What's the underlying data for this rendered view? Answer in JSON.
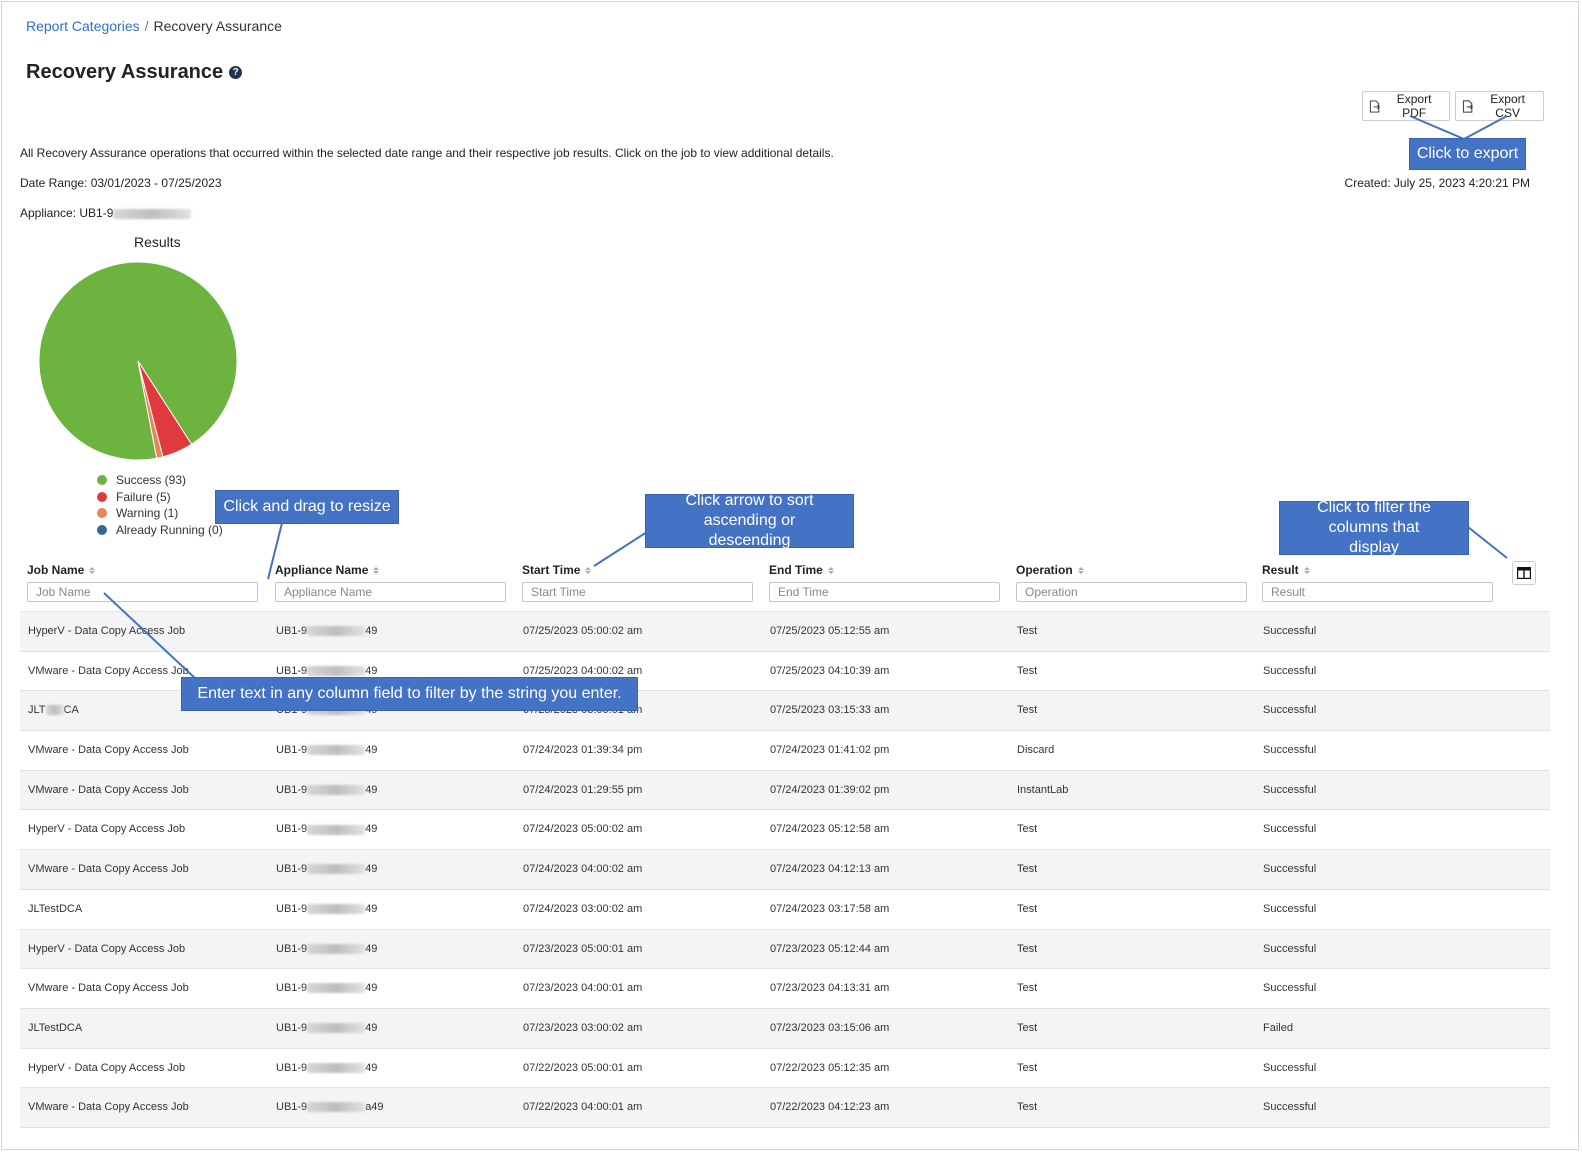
{
  "breadcrumb": {
    "root": "Report Categories",
    "separator": "/",
    "current": "Recovery Assurance"
  },
  "page": {
    "title": "Recovery Assurance",
    "help_glyph": "?",
    "description": "All Recovery Assurance operations that occurred within the selected date range and their respective job results. Click on the job to view additional details.",
    "date_range": "Date Range: 03/01/2023 - 07/25/2023",
    "created": "Created: July 25, 2023 4:20:21 PM",
    "appliance_prefix": "Appliance: UB1-9"
  },
  "toolbar": {
    "export_pdf": "Export PDF",
    "export_csv": "Export CSV"
  },
  "chart_data": {
    "type": "pie",
    "title": "Results",
    "slices": [
      {
        "label": "Success (93)",
        "value": 93,
        "color": "#6db33f"
      },
      {
        "label": "Failure (5)",
        "value": 5,
        "color": "#e03a3e"
      },
      {
        "label": "Warning (1)",
        "value": 1,
        "color": "#e8855a"
      },
      {
        "label": "Already Running (0)",
        "value": 0,
        "color": "#35678f"
      }
    ],
    "legend": "bottom"
  },
  "callouts": {
    "export": "Click to export",
    "resize": "Click and drag to resize",
    "sort": "Click arrow to sort ascending or descending",
    "columns": "Click to filter the columns that display",
    "filter": "Enter text in any column field to filter by the string you enter."
  },
  "table": {
    "columns": [
      {
        "label": "Job Name",
        "placeholder": "Job Name"
      },
      {
        "label": "Appliance Name",
        "placeholder": "Appliance Name"
      },
      {
        "label": "Start Time",
        "placeholder": "Start Time"
      },
      {
        "label": "End Time",
        "placeholder": "End Time"
      },
      {
        "label": "Operation",
        "placeholder": "Operation"
      },
      {
        "label": "Result",
        "placeholder": "Result"
      }
    ],
    "rows": [
      {
        "job": "HyperV - Data Copy Access Job",
        "appliance_prefix": "UB1-9",
        "appliance_suffix": "49",
        "start": "07/25/2023 05:00:02 am",
        "end": "07/25/2023 05:12:55 am",
        "operation": "Test",
        "result": "Successful"
      },
      {
        "job": "VMware - Data Copy Access Job",
        "appliance_prefix": "UB1-9",
        "appliance_suffix": "49",
        "start": "07/25/2023 04:00:02 am",
        "end": "07/25/2023 04:10:39 am",
        "operation": "Test",
        "result": "Successful"
      },
      {
        "job": "JLT",
        "job_suffix": "CA",
        "appliance_prefix": "UB1-9",
        "appliance_suffix": "49",
        "start": "07/25/2023 03:00:01 am",
        "end": "07/25/2023 03:15:33 am",
        "operation": "Test",
        "result": "Successful"
      },
      {
        "job": "VMware - Data Copy Access Job",
        "appliance_prefix": "UB1-9",
        "appliance_suffix": "49",
        "start": "07/24/2023 01:39:34 pm",
        "end": "07/24/2023 01:41:02 pm",
        "operation": "Discard",
        "result": "Successful"
      },
      {
        "job": "VMware - Data Copy Access Job",
        "appliance_prefix": "UB1-9",
        "appliance_suffix": "49",
        "start": "07/24/2023 01:29:55 pm",
        "end": "07/24/2023 01:39:02 pm",
        "operation": "InstantLab",
        "result": "Successful"
      },
      {
        "job": "HyperV - Data Copy Access Job",
        "appliance_prefix": "UB1-9",
        "appliance_suffix": "49",
        "start": "07/24/2023 05:00:02 am",
        "end": "07/24/2023 05:12:58 am",
        "operation": "Test",
        "result": "Successful"
      },
      {
        "job": "VMware - Data Copy Access Job",
        "appliance_prefix": "UB1-9",
        "appliance_suffix": "49",
        "start": "07/24/2023 04:00:02 am",
        "end": "07/24/2023 04:12:13 am",
        "operation": "Test",
        "result": "Successful"
      },
      {
        "job": "JLTestDCA",
        "appliance_prefix": "UB1-9",
        "appliance_suffix": "49",
        "start": "07/24/2023 03:00:02 am",
        "end": "07/24/2023 03:17:58 am",
        "operation": "Test",
        "result": "Successful"
      },
      {
        "job": "HyperV - Data Copy Access Job",
        "appliance_prefix": "UB1-9",
        "appliance_suffix": "49",
        "start": "07/23/2023 05:00:01 am",
        "end": "07/23/2023 05:12:44 am",
        "operation": "Test",
        "result": "Successful"
      },
      {
        "job": "VMware - Data Copy Access Job",
        "appliance_prefix": "UB1-9",
        "appliance_suffix": "49",
        "start": "07/23/2023 04:00:01 am",
        "end": "07/23/2023 04:13:31 am",
        "operation": "Test",
        "result": "Successful"
      },
      {
        "job": "JLTestDCA",
        "appliance_prefix": "UB1-9",
        "appliance_suffix": "49",
        "start": "07/23/2023 03:00:02 am",
        "end": "07/23/2023 03:15:06 am",
        "operation": "Test",
        "result": "Failed"
      },
      {
        "job": "HyperV - Data Copy Access Job",
        "appliance_prefix": "UB1-9",
        "appliance_suffix": "49",
        "start": "07/22/2023 05:00:01 am",
        "end": "07/22/2023 05:12:35 am",
        "operation": "Test",
        "result": "Successful"
      },
      {
        "job": "VMware - Data Copy Access Job",
        "appliance_prefix": "UB1-9",
        "appliance_suffix": "a49",
        "start": "07/22/2023 04:00:01 am",
        "end": "07/22/2023 04:12:23 am",
        "operation": "Test",
        "result": "Successful"
      }
    ]
  },
  "icons": {
    "help": "help-icon",
    "export": "file-export-icon",
    "sort": "sort-icon",
    "columns": "column-toggle-icon"
  }
}
